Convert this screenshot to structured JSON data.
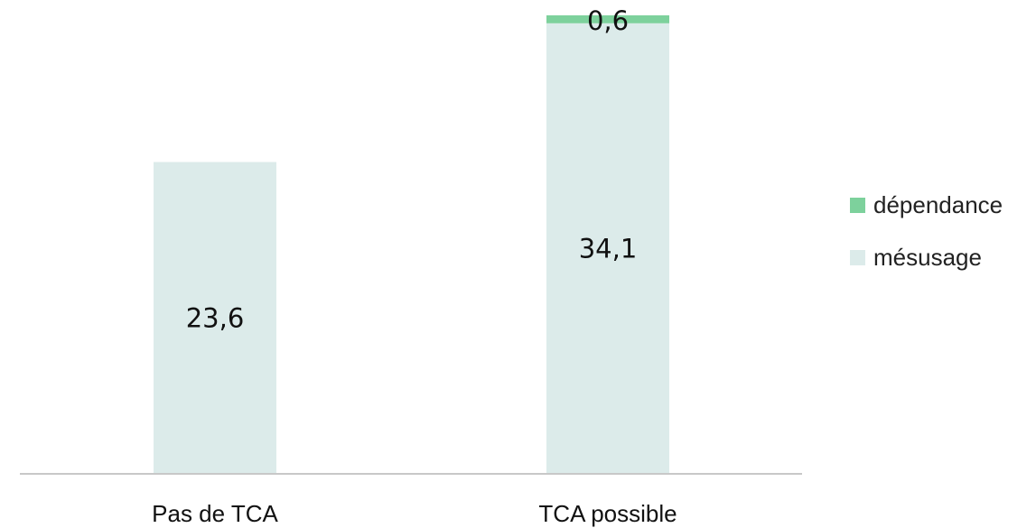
{
  "chart_data": {
    "type": "bar",
    "stacked": true,
    "categories": [
      "Pas de TCA",
      "TCA possible"
    ],
    "series": [
      {
        "name": "mésusage",
        "values": [
          23.6,
          34.1
        ],
        "labels": [
          "23,6",
          "34,1"
        ],
        "color": "#dcebea"
      },
      {
        "name": "dépendance",
        "values": [
          0,
          0.6
        ],
        "labels": [
          "",
          "0,6"
        ],
        "color": "#7dd19c"
      }
    ],
    "title": "",
    "xlabel": "",
    "ylabel": "",
    "ylim": [
      0,
      34.7
    ],
    "grid": false,
    "legend_placement": "right"
  },
  "legend": [
    {
      "label": "dépendance",
      "color": "#7dd19c"
    },
    {
      "label": "mésusage",
      "color": "#dcebea"
    }
  ]
}
